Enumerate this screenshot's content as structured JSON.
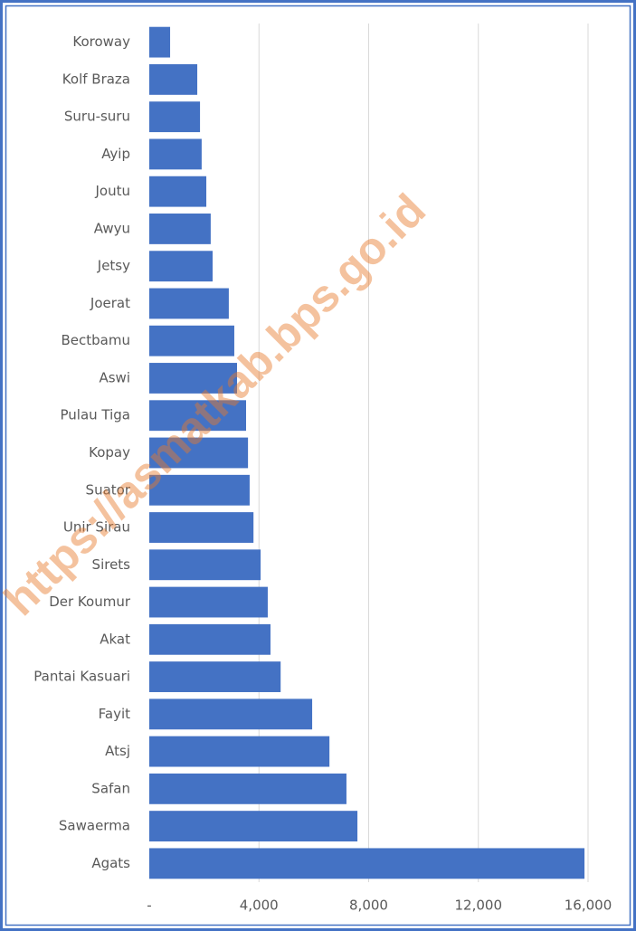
{
  "chart_data": {
    "type": "barh",
    "watermark": "https://asmatkab.bps.go.id",
    "categories": [
      "Koroway",
      "Kolf Braza",
      "Suru-suru",
      "Ayip",
      "Joutu",
      "Awyu",
      "Jetsy",
      "Joerat",
      "Bectbamu",
      "Aswi",
      "Pulau Tiga",
      "Kopay",
      "Suator",
      "Unir Sirau",
      "Sirets",
      "Der Koumur",
      "Akat",
      "Pantai Kasuari",
      "Fayit",
      "Atsj",
      "Safan",
      "Sawaerma",
      "Agats"
    ],
    "values": [
      760,
      1750,
      1850,
      1910,
      2080,
      2240,
      2310,
      2900,
      3100,
      3200,
      3530,
      3600,
      3660,
      3800,
      4060,
      4320,
      4420,
      4790,
      5940,
      6570,
      7190,
      7590,
      15870
    ],
    "color": "#4472c4",
    "xlim": [
      0,
      16000
    ],
    "xticks": [
      {
        "value": 0,
        "label": "-"
      },
      {
        "value": 4000,
        "label": "4,000"
      },
      {
        "value": 8000,
        "label": "8,000"
      },
      {
        "value": 12000,
        "label": "12,000"
      },
      {
        "value": 16000,
        "label": "16,000"
      }
    ],
    "grid": true
  }
}
